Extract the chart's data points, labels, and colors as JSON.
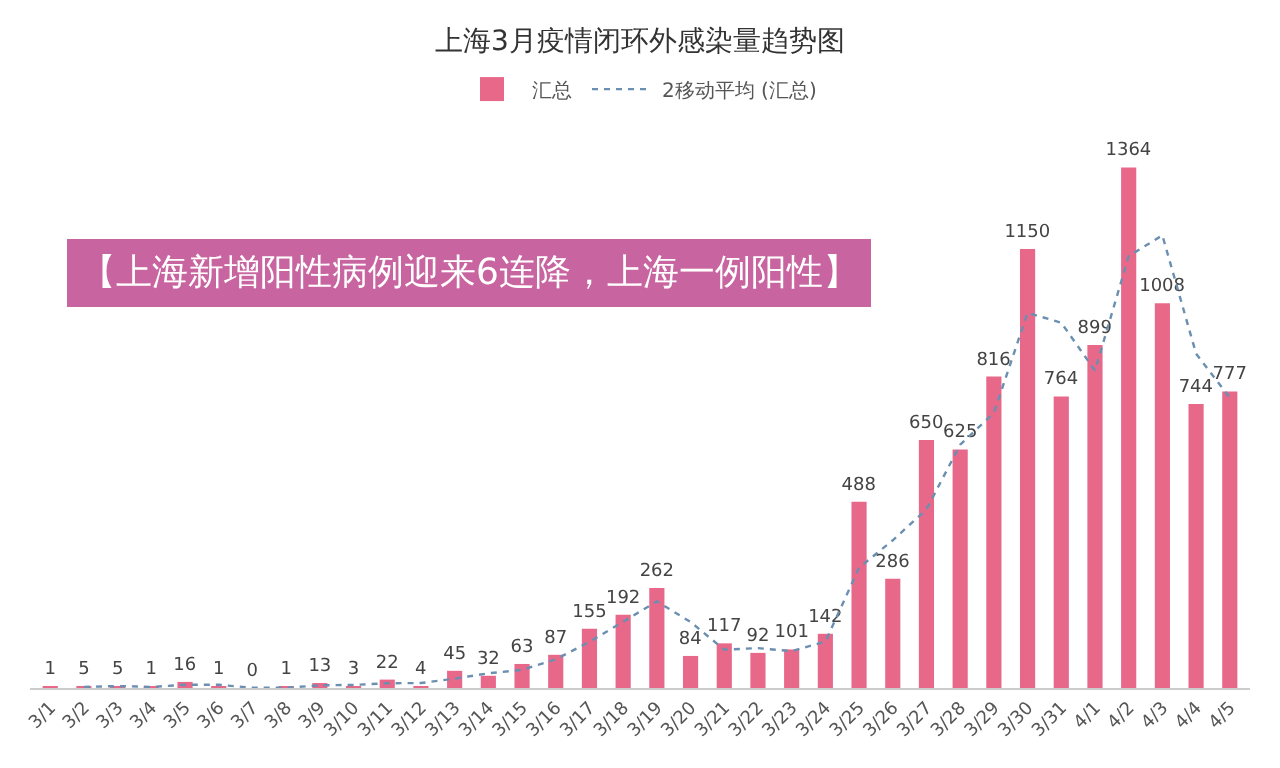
{
  "chart_data": {
    "type": "bar",
    "title": "上海3月疫情闭环外感染量趋势图",
    "categories": [
      "3/1",
      "3/2",
      "3/3",
      "3/4",
      "3/5",
      "3/6",
      "3/7",
      "3/8",
      "3/9",
      "3/10",
      "3/11",
      "3/12",
      "3/13",
      "3/14",
      "3/15",
      "3/16",
      "3/17",
      "3/18",
      "3/19",
      "3/20",
      "3/21",
      "3/22",
      "3/23",
      "3/24",
      "3/25",
      "3/26",
      "3/27",
      "3/28",
      "3/29",
      "3/30",
      "3/31",
      "4/1",
      "4/2",
      "4/3",
      "4/4",
      "4/5"
    ],
    "series": [
      {
        "name": "汇总",
        "color": "#e8688a",
        "data_labels": true,
        "values": [
          1,
          5,
          5,
          1,
          16,
          1,
          0,
          1,
          13,
          3,
          22,
          4,
          45,
          32,
          63,
          87,
          155,
          192,
          262,
          84,
          117,
          92,
          101,
          142,
          488,
          286,
          650,
          625,
          816,
          1150,
          764,
          899,
          1364,
          1008,
          744,
          777
        ]
      },
      {
        "name": "2移动平均 (汇总)",
        "type": "line",
        "color": "#6a8fb0",
        "line_style": "dotted",
        "values": [
          null,
          3,
          5,
          3,
          8.5,
          8.5,
          0.5,
          0.5,
          7,
          8,
          12.5,
          13,
          24.5,
          38.5,
          47.5,
          75,
          121,
          173.5,
          227,
          173,
          100.5,
          104.5,
          96.5,
          121.5,
          315,
          387,
          468,
          637.5,
          720.5,
          983,
          957,
          831.5,
          1131.5,
          1186,
          876,
          760.5
        ]
      }
    ],
    "annotations": [
      "【上海新增阳性病例迎来6连降，上海一例阳性】"
    ],
    "legend": "top"
  }
}
